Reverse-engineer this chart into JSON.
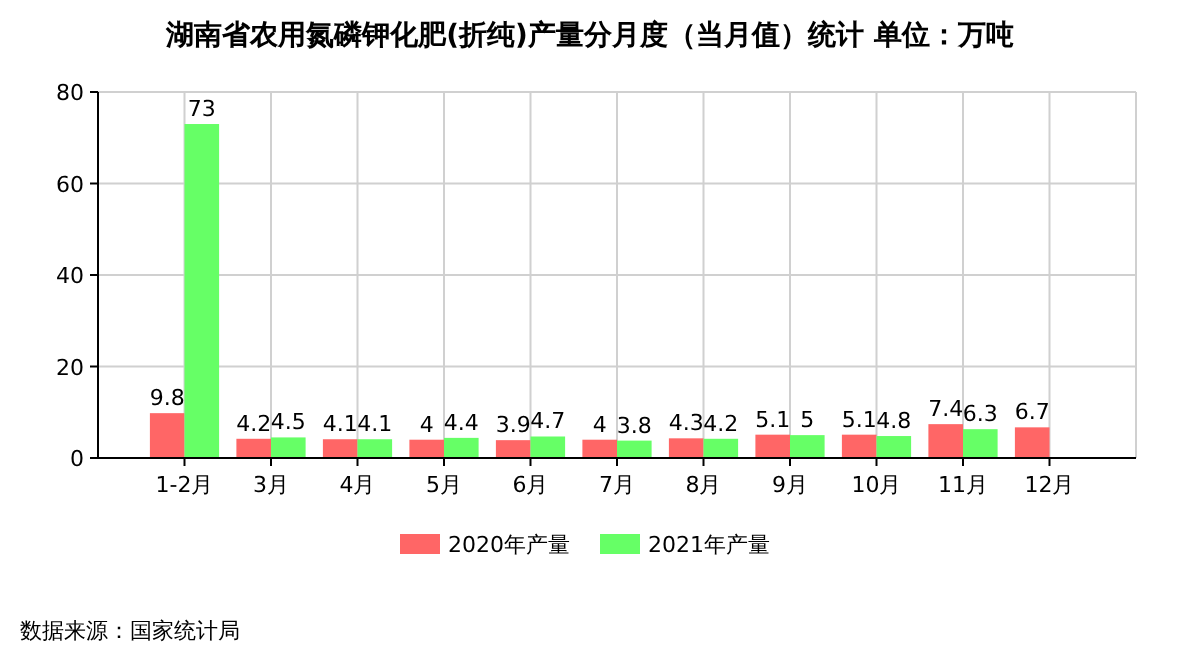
{
  "chart_data": {
    "type": "bar",
    "title": "湖南省农用氮磷钾化肥(折纯)产量分月度（当月值）统计 单位：万吨",
    "categories": [
      "1-2月",
      "3月",
      "4月",
      "5月",
      "6月",
      "7月",
      "8月",
      "9月",
      "10月",
      "11月",
      "12月"
    ],
    "series": [
      {
        "name": "2020年产量",
        "color": "#ff6666",
        "values": [
          9.8,
          4.2,
          4.1,
          4,
          3.9,
          4,
          4.3,
          5.1,
          5.1,
          7.4,
          6.7
        ]
      },
      {
        "name": "2021年产量",
        "color": "#66ff66",
        "values": [
          73,
          4.5,
          4.1,
          4.4,
          4.7,
          3.8,
          4.2,
          5,
          4.8,
          6.3,
          null
        ]
      }
    ],
    "ylim": [
      0,
      80
    ],
    "yticks": [
      0,
      20,
      40,
      60,
      80
    ],
    "grid": true,
    "legend": "bottom",
    "data_labels": true,
    "annotations": [
      "数据来源：国家统计局"
    ]
  }
}
